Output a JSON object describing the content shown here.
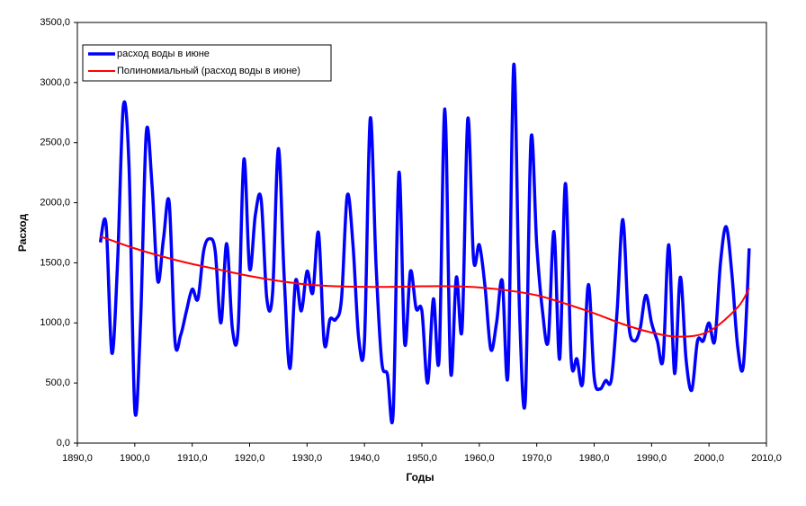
{
  "chart_data": {
    "type": "line",
    "ylabel": "Расход",
    "xlabel": "Годы",
    "legend": "upper left",
    "x": [
      1894,
      1895,
      1896,
      1897,
      1898,
      1899,
      1900,
      1901,
      1902,
      1903,
      1904,
      1905,
      1906,
      1907,
      1908,
      1909,
      1910,
      1911,
      1912,
      1913,
      1914,
      1915,
      1916,
      1917,
      1918,
      1919,
      1920,
      1921,
      1922,
      1923,
      1924,
      1925,
      1926,
      1927,
      1928,
      1929,
      1930,
      1931,
      1932,
      1933,
      1934,
      1935,
      1936,
      1937,
      1938,
      1939,
      1940,
      1941,
      1942,
      1943,
      1944,
      1945,
      1946,
      1947,
      1948,
      1949,
      1950,
      1951,
      1952,
      1953,
      1954,
      1955,
      1956,
      1957,
      1958,
      1959,
      1960,
      1961,
      1962,
      1963,
      1964,
      1965,
      1966,
      1967,
      1968,
      1969,
      1970,
      1971,
      1972,
      1973,
      1974,
      1975,
      1976,
      1977,
      1978,
      1979,
      1980,
      1981,
      1982,
      1983,
      1984,
      1985,
      1986,
      1987,
      1988,
      1989,
      1990,
      1991,
      1992,
      1993,
      1994,
      1995,
      1996,
      1997,
      1998,
      1999,
      2000,
      2001,
      2002,
      2003,
      2004,
      2005,
      2006,
      2007
    ],
    "series": [
      {
        "name": "расход воды в июне",
        "color": "#0000ff",
        "values": [
          1670,
          1820,
          750,
          1500,
          2800,
          2300,
          280,
          1000,
          2580,
          2150,
          1350,
          1700,
          2000,
          850,
          900,
          1100,
          1280,
          1200,
          1600,
          1700,
          1600,
          1000,
          1660,
          950,
          950,
          2360,
          1450,
          1900,
          2030,
          1200,
          1250,
          2450,
          1400,
          620,
          1350,
          1100,
          1430,
          1250,
          1750,
          830,
          1030,
          1030,
          1200,
          2060,
          1650,
          870,
          850,
          2700,
          1500,
          680,
          570,
          250,
          2250,
          830,
          1430,
          1120,
          1100,
          500,
          1200,
          700,
          2780,
          600,
          1380,
          950,
          2700,
          1530,
          1650,
          1300,
          780,
          1000,
          1350,
          580,
          3150,
          1100,
          350,
          2530,
          1650,
          1100,
          850,
          1760,
          700,
          2160,
          700,
          700,
          500,
          1320,
          550,
          450,
          520,
          530,
          1100,
          1860,
          1000,
          850,
          950,
          1230,
          1000,
          850,
          700,
          1650,
          580,
          1380,
          700,
          440,
          850,
          850,
          1000,
          850,
          1500,
          1800,
          1400,
          800,
          650,
          1620
        ]
      },
      {
        "name": "Полиномиальный (расход воды в июне)",
        "color": "#ff0000",
        "x": [
          1894,
          1900,
          1905,
          1910,
          1915,
          1920,
          1925,
          1930,
          1935,
          1940,
          1945,
          1950,
          1955,
          1960,
          1965,
          1970,
          1975,
          1980,
          1985,
          1990,
          1995,
          2000,
          2005,
          2007
        ],
        "values": [
          1720,
          1620,
          1550,
          1490,
          1440,
          1390,
          1350,
          1320,
          1305,
          1300,
          1300,
          1305,
          1305,
          1295,
          1270,
          1230,
          1160,
          1080,
          990,
          920,
          885,
          930,
          1130,
          1290
        ]
      }
    ],
    "xlim": [
      1890,
      2010
    ],
    "xticks": [
      {
        "value": 1890,
        "label": "1890,0"
      },
      {
        "value": 1900,
        "label": "1900,0"
      },
      {
        "value": 1910,
        "label": "1910,0"
      },
      {
        "value": 1920,
        "label": "1920,0"
      },
      {
        "value": 1930,
        "label": "1930,0"
      },
      {
        "value": 1940,
        "label": "1940,0"
      },
      {
        "value": 1950,
        "label": "1950,0"
      },
      {
        "value": 1960,
        "label": "1960,0"
      },
      {
        "value": 1970,
        "label": "1970,0"
      },
      {
        "value": 1980,
        "label": "1980,0"
      },
      {
        "value": 1990,
        "label": "1990,0"
      },
      {
        "value": 2000,
        "label": "2000,0"
      },
      {
        "value": 2010,
        "label": "2010,0"
      }
    ],
    "ylim": [
      0,
      3500
    ],
    "yticks": [
      {
        "value": 0,
        "label": "0,0"
      },
      {
        "value": 500,
        "label": "500,0"
      },
      {
        "value": 1000,
        "label": "1000,0"
      },
      {
        "value": 1500,
        "label": "1500,0"
      },
      {
        "value": 2000,
        "label": "2000,0"
      },
      {
        "value": 2500,
        "label": "2500,0"
      },
      {
        "value": 3000,
        "label": "3000,0"
      },
      {
        "value": 3500,
        "label": "3500,0"
      }
    ]
  }
}
